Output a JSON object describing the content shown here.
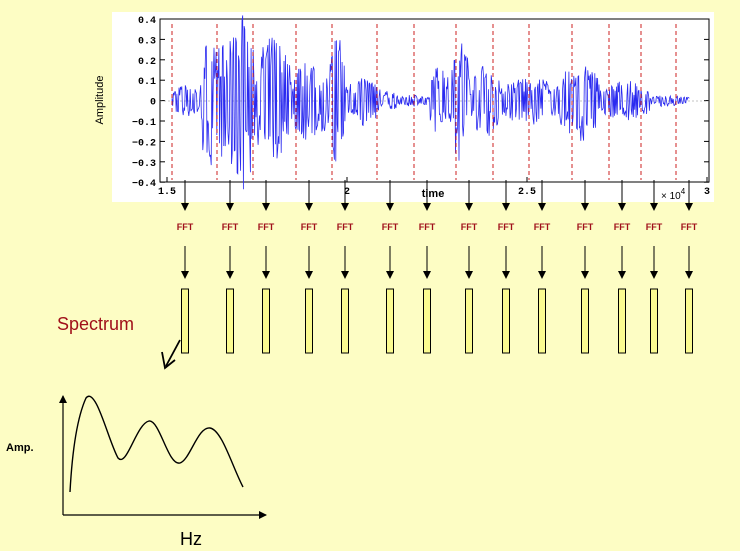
{
  "waveform": {
    "y_axis_label": "Amplitude",
    "x_axis_label": "time",
    "y_ticks": [
      "0.4",
      "0.3",
      "0.2",
      "0.1",
      "0",
      "−0.1",
      "−0.2",
      "−0.3",
      "−0.4"
    ],
    "x_ticks": [
      "1.5",
      "2",
      "2.5",
      "3"
    ],
    "x_multiplier": "× 10",
    "x_multiplier_exponent": "4",
    "waveform_color": "#2a2af0",
    "frame_line_color": "#cc2020"
  },
  "fft_labels": [
    "FFT",
    "FFT",
    "FFT",
    "FFT",
    "FFT",
    "FFT",
    "FFT",
    "FFT",
    "FFT",
    "FFT",
    "FFT",
    "FFT",
    "FFT",
    "FFT"
  ],
  "fft_color": "#a0101a",
  "spectrum_bar_color": "#fbfb90",
  "spectrum_label": "Spectrum",
  "spectrum_plot": {
    "y_label": "Amp.",
    "x_label": "Hz"
  }
}
